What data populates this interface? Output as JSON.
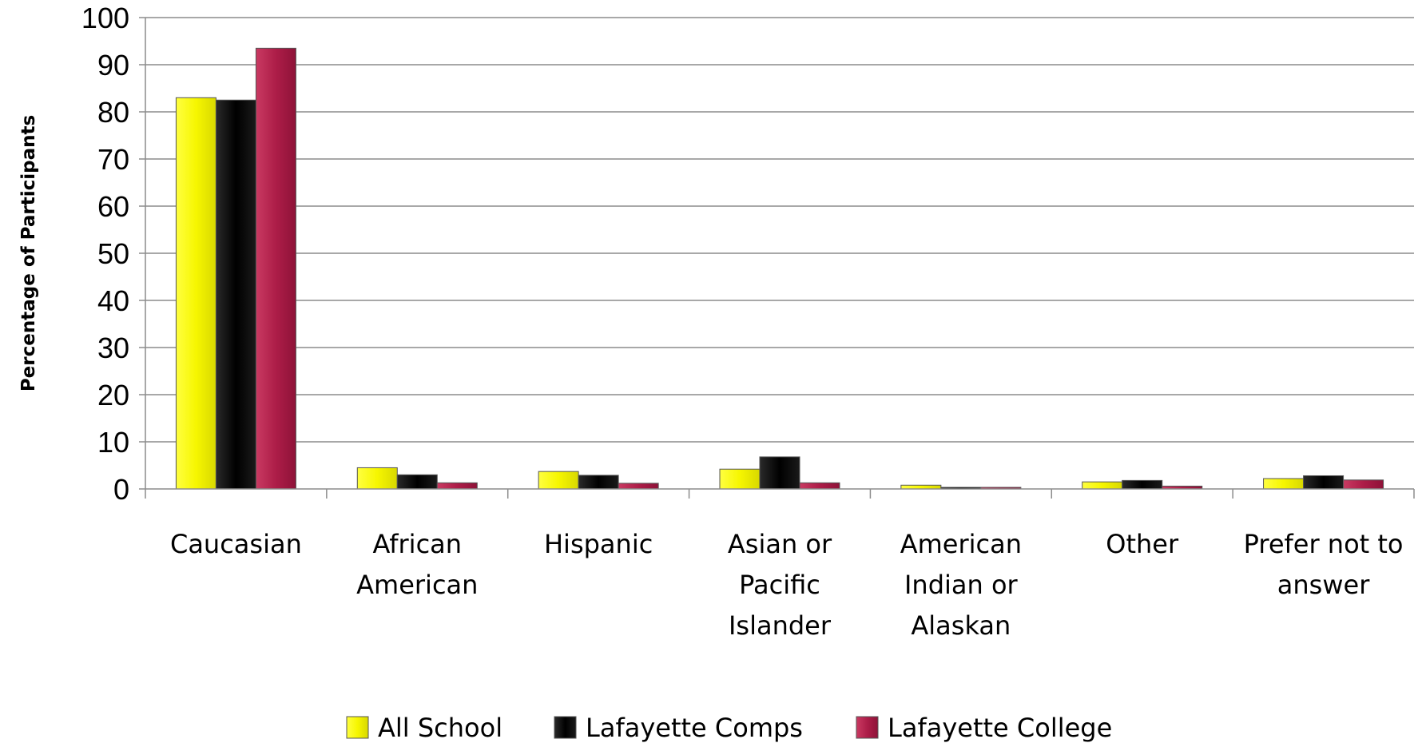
{
  "chart_data": {
    "type": "bar",
    "title": "",
    "xlabel": "",
    "ylabel": "Percentage of Participants",
    "ylim": [
      0,
      100
    ],
    "yticks": [
      0,
      10,
      20,
      30,
      40,
      50,
      60,
      70,
      80,
      90,
      100
    ],
    "grid": true,
    "legend_position": "bottom",
    "categories": [
      [
        "Caucasian"
      ],
      [
        "African",
        "American"
      ],
      [
        "Hispanic"
      ],
      [
        "Asian or",
        "Pacific",
        "Islander"
      ],
      [
        "American",
        "Indian or",
        "Alaskan"
      ],
      [
        "Other"
      ],
      [
        "Prefer not to",
        "answer"
      ]
    ],
    "series": [
      {
        "name": "All School",
        "color": "#f2f200",
        "values": [
          83,
          4.5,
          3.7,
          4.2,
          0.8,
          1.5,
          2.2
        ]
      },
      {
        "name": "Lafayette Comps",
        "color": "#0d0d0d",
        "values": [
          82.5,
          3.0,
          2.9,
          6.8,
          0.2,
          1.8,
          2.8
        ]
      },
      {
        "name": "Lafayette College",
        "color": "#b01e4a",
        "values": [
          93.5,
          1.3,
          1.2,
          1.3,
          0,
          0.6,
          1.9
        ]
      }
    ]
  }
}
